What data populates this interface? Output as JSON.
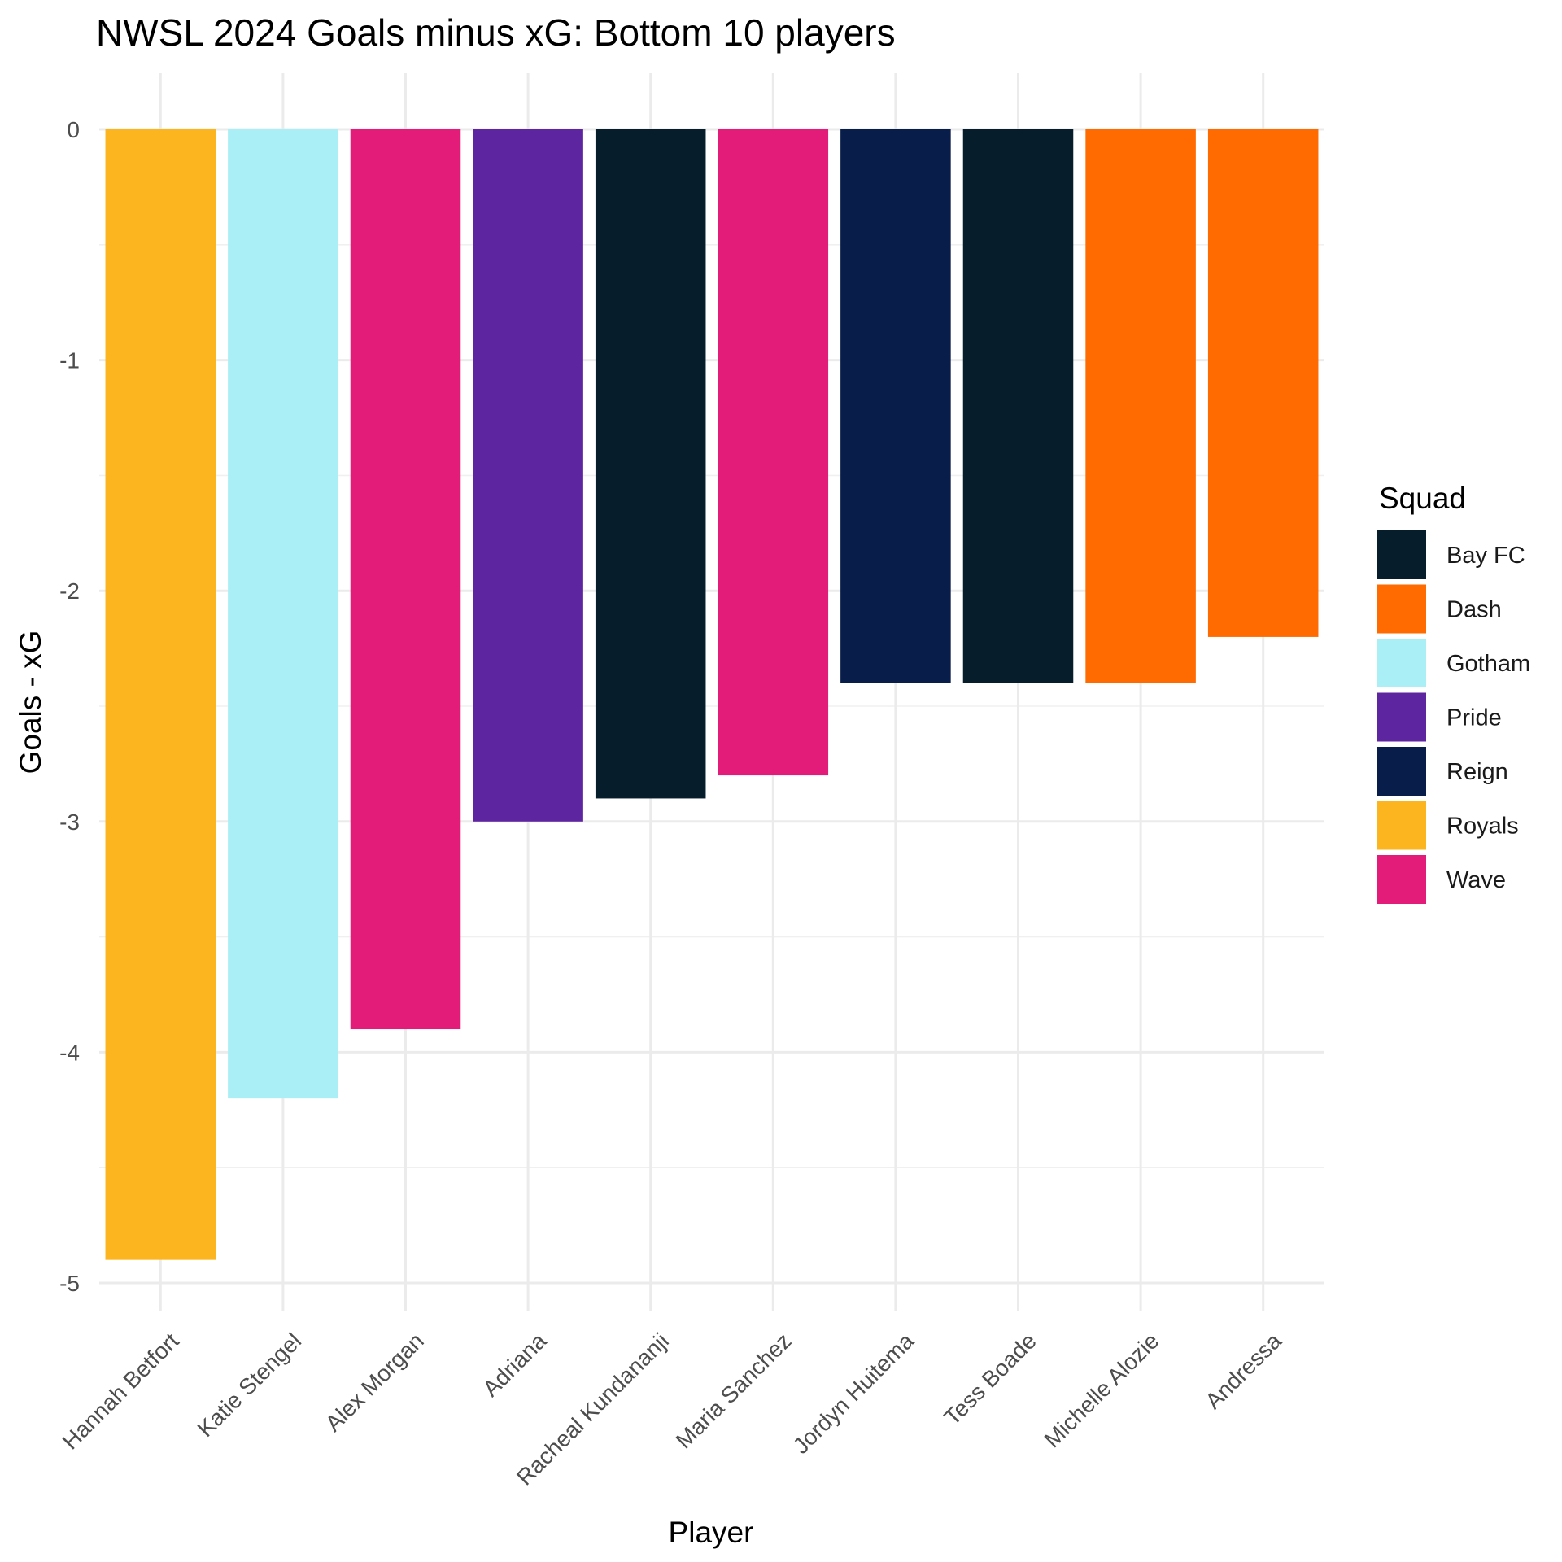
{
  "chart_data": {
    "type": "bar",
    "title": "NWSL 2024 Goals minus xG: Bottom 10 players",
    "xlabel": "Player",
    "ylabel": "Goals - xG",
    "ylim": [
      -5.2,
      0.25
    ],
    "y_ticks": [
      0,
      -1,
      -2,
      -3,
      -4,
      -5
    ],
    "y_tick_labels": [
      "0",
      "-1",
      "-2",
      "-3",
      "-4",
      "-5"
    ],
    "grid": true,
    "legend_position": "right",
    "legend_title": "Squad",
    "categories": [
      "Hannah Betfort",
      "Katie Stengel",
      "Alex Morgan",
      "Adriana",
      "Racheal Kundananji",
      "Maria Sanchez",
      "Jordyn Huitema",
      "Tess Boade",
      "Michelle Alozie",
      "Andressa"
    ],
    "values": [
      -4.9,
      -4.2,
      -3.9,
      -3.0,
      -2.9,
      -2.8,
      -2.4,
      -2.4,
      -2.4,
      -2.2
    ],
    "squads": [
      "Royals",
      "Gotham",
      "Wave",
      "Pride",
      "Bay FC",
      "Wave",
      "Reign",
      "Bay FC",
      "Dash",
      "Dash"
    ],
    "legend": [
      {
        "name": "Bay FC",
        "color": "#061e2c"
      },
      {
        "name": "Dash",
        "color": "#ff6b00"
      },
      {
        "name": "Gotham",
        "color": "#a9eff5"
      },
      {
        "name": "Pride",
        "color": "#5e25a0"
      },
      {
        "name": "Reign",
        "color": "#091d4a"
      },
      {
        "name": "Royals",
        "color": "#fcb41f"
      },
      {
        "name": "Wave",
        "color": "#e31c79"
      }
    ]
  }
}
